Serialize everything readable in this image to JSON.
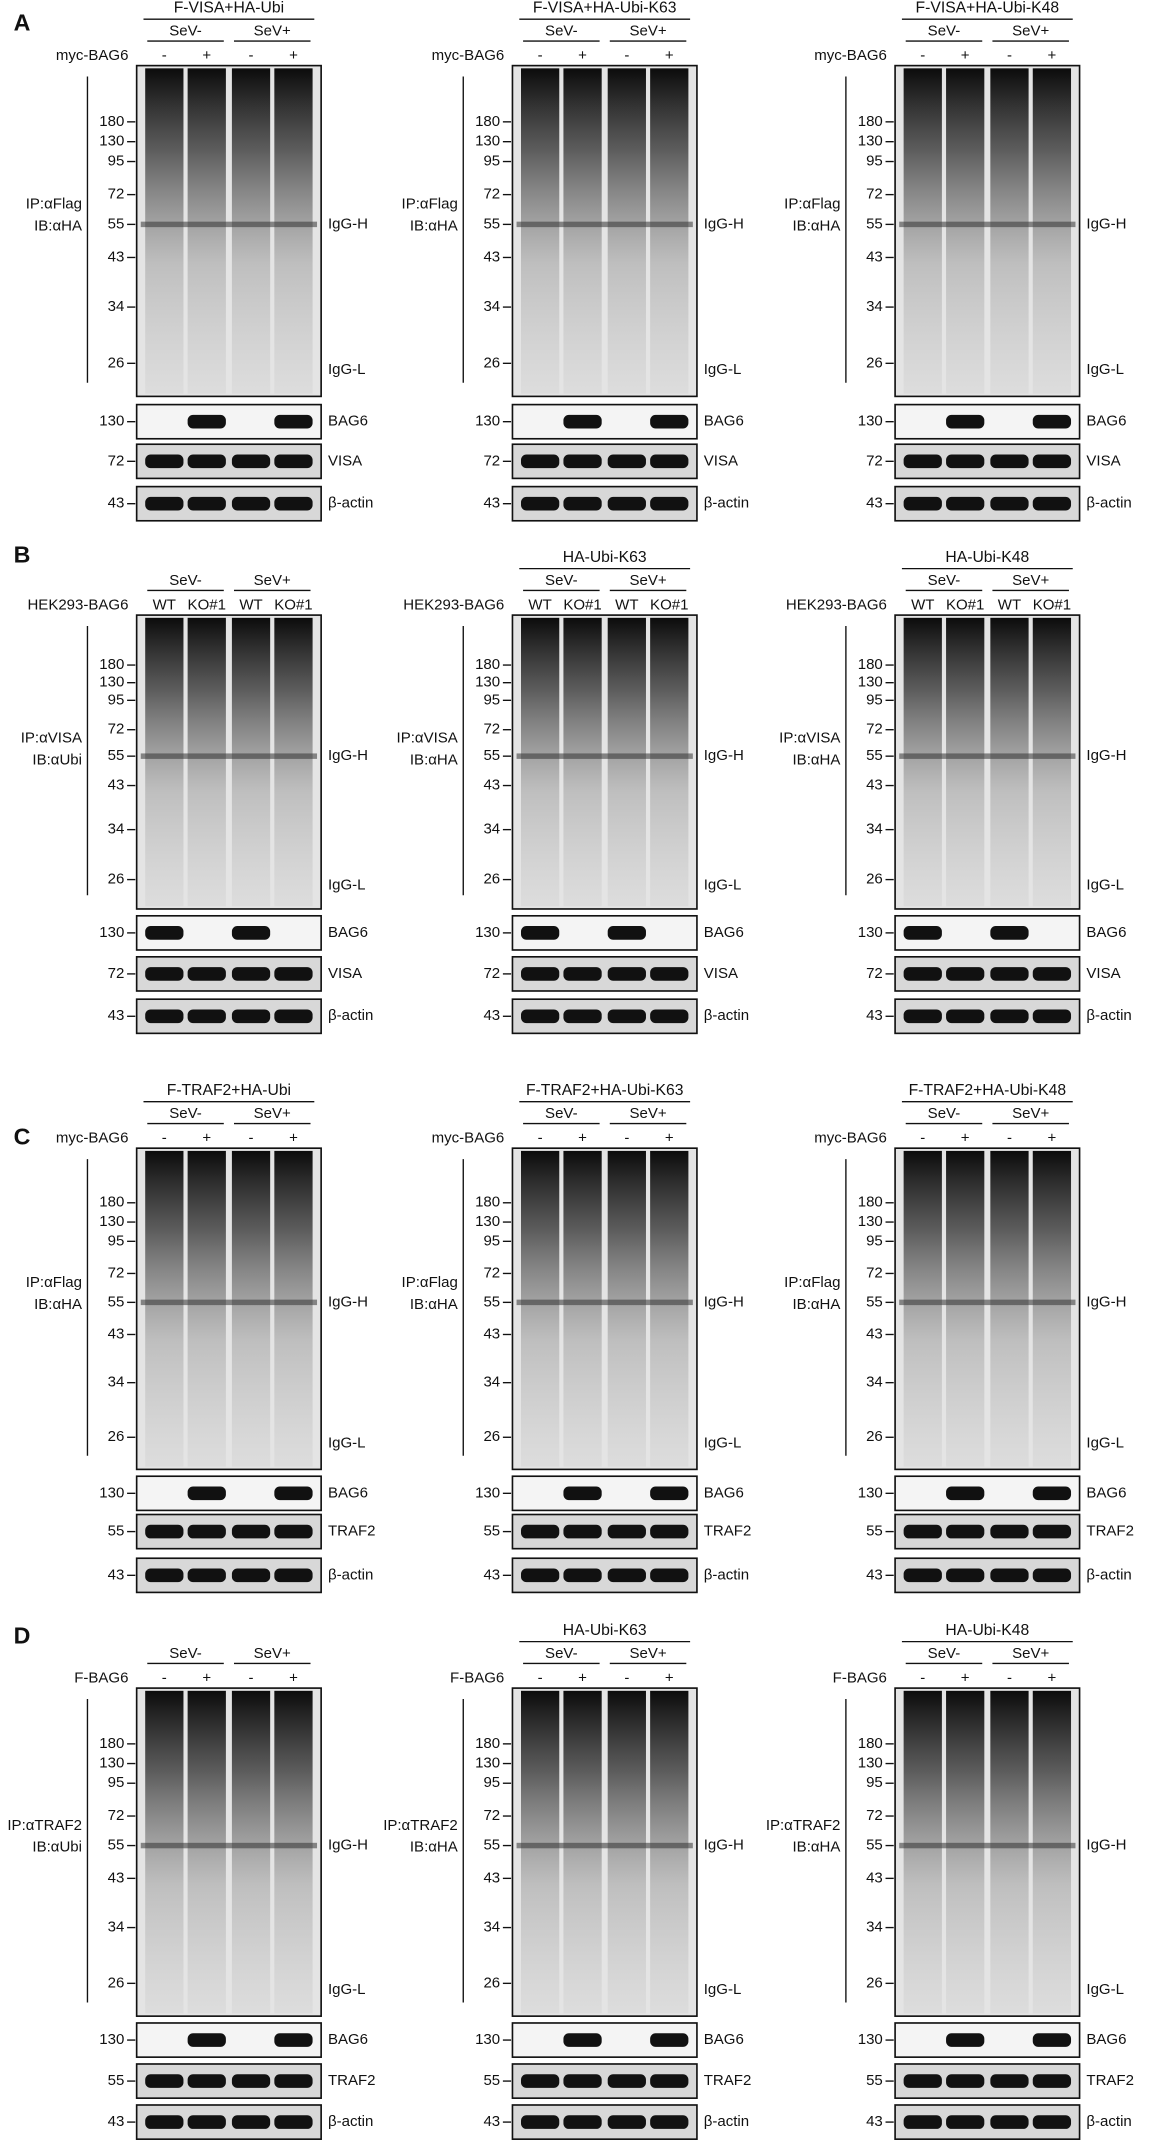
{
  "panels": [
    {
      "label": "A",
      "blots": [
        {
          "title": "F-VISA+HA-Ubi",
          "conditions": [
            "SeV-",
            "SeV+"
          ],
          "treatment": "myc-BAG6",
          "lanes": [
            "-",
            "+",
            "-",
            "+"
          ],
          "ip": [
            "IP:αFlag",
            "IB:αHA"
          ],
          "markers": [
            180,
            130,
            95,
            72,
            55,
            43,
            34,
            26
          ],
          "bands": [
            "IgG-H",
            "IgG-L"
          ],
          "strips": [
            {
              "marker": 130,
              "label": "BAG6"
            },
            {
              "marker": 72,
              "label": "VISA"
            },
            {
              "marker": 43,
              "label": "β-actin"
            }
          ]
        },
        {
          "title": "F-VISA+HA-Ubi-K63",
          "conditions": [
            "SeV-",
            "SeV+"
          ],
          "treatment": "myc-BAG6",
          "lanes": [
            "-",
            "+",
            "-",
            "+"
          ],
          "ip": [
            "IP:αFlag",
            "IB:αHA"
          ],
          "markers": [
            180,
            130,
            95,
            72,
            55,
            43,
            34,
            26
          ],
          "bands": [
            "IgG-H",
            "IgG-L"
          ],
          "strips": [
            {
              "marker": 130,
              "label": "BAG6"
            },
            {
              "marker": 72,
              "label": "VISA"
            },
            {
              "marker": 43,
              "label": "β-actin"
            }
          ]
        },
        {
          "title": "F-VISA+HA-Ubi-K48",
          "conditions": [
            "SeV-",
            "SeV+"
          ],
          "treatment": "myc-BAG6",
          "lanes": [
            "-",
            "+",
            "-",
            "+"
          ],
          "ip": [
            "IP:αFlag",
            "IB:αHA"
          ],
          "markers": [
            180,
            130,
            95,
            72,
            55,
            43,
            34,
            26
          ],
          "bands": [
            "IgG-H",
            "IgG-L"
          ],
          "strips": [
            {
              "marker": 130,
              "label": "BAG6"
            },
            {
              "marker": 72,
              "label": "VISA"
            },
            {
              "marker": 43,
              "label": "β-actin"
            }
          ]
        }
      ]
    },
    {
      "label": "B",
      "blots": [
        {
          "conditions": [
            "SeV-",
            "SeV+"
          ],
          "treatment": "HEK293-BAG6",
          "lanes": [
            "WT",
            "KO#1",
            "WT",
            "KO#1"
          ],
          "ip": [
            "IP:αVISA",
            "IB:αUbi"
          ],
          "markers": [
            180,
            130,
            95,
            72,
            55,
            43,
            34,
            26
          ],
          "bands": [
            "IgG-H",
            "IgG-L"
          ],
          "strips": [
            {
              "marker": 130,
              "label": "BAG6"
            },
            {
              "marker": 72,
              "label": "VISA"
            },
            {
              "marker": 43,
              "label": "β-actin"
            }
          ]
        },
        {
          "title": "HA-Ubi-K63",
          "conditions": [
            "SeV-",
            "SeV+"
          ],
          "treatment": "HEK293-BAG6",
          "lanes": [
            "WT",
            "KO#1",
            "WT",
            "KO#1"
          ],
          "ip": [
            "IP:αVISA",
            "IB:αHA"
          ],
          "markers": [
            180,
            130,
            95,
            72,
            55,
            43,
            34,
            26
          ],
          "bands": [
            "IgG-H",
            "IgG-L"
          ],
          "strips": [
            {
              "marker": 130,
              "label": "BAG6"
            },
            {
              "marker": 72,
              "label": "VISA"
            },
            {
              "marker": 43,
              "label": "β-actin"
            }
          ]
        },
        {
          "title": "HA-Ubi-K48",
          "conditions": [
            "SeV-",
            "SeV+"
          ],
          "treatment": "HEK293-BAG6",
          "lanes": [
            "WT",
            "KO#1",
            "WT",
            "KO#1"
          ],
          "ip": [
            "IP:αVISA",
            "IB:αHA"
          ],
          "markers": [
            180,
            130,
            95,
            72,
            55,
            43,
            34,
            26
          ],
          "bands": [
            "IgG-H",
            "IgG-L"
          ],
          "strips": [
            {
              "marker": 130,
              "label": "BAG6"
            },
            {
              "marker": 72,
              "label": "VISA"
            },
            {
              "marker": 43,
              "label": "β-actin"
            }
          ]
        }
      ]
    },
    {
      "label": "C",
      "blots": [
        {
          "title": "F-TRAF2+HA-Ubi",
          "conditions": [
            "SeV-",
            "SeV+"
          ],
          "treatment": "myc-BAG6",
          "lanes": [
            "-",
            "+",
            "-",
            "+"
          ],
          "ip": [
            "IP:αFlag",
            "IB:αHA"
          ],
          "markers": [
            180,
            130,
            95,
            72,
            55,
            43,
            34,
            26
          ],
          "bands": [
            "IgG-H",
            "IgG-L"
          ],
          "strips": [
            {
              "marker": 130,
              "label": "BAG6"
            },
            {
              "marker": 55,
              "label": "TRAF2"
            },
            {
              "marker": 43,
              "label": "β-actin"
            }
          ]
        },
        {
          "title": "F-TRAF2+HA-Ubi-K63",
          "conditions": [
            "SeV-",
            "SeV+"
          ],
          "treatment": "myc-BAG6",
          "lanes": [
            "-",
            "+",
            "-",
            "+"
          ],
          "ip": [
            "IP:αFlag",
            "IB:αHA"
          ],
          "markers": [
            180,
            130,
            95,
            72,
            55,
            43,
            34,
            26
          ],
          "bands": [
            "IgG-H",
            "IgG-L"
          ],
          "strips": [
            {
              "marker": 130,
              "label": "BAG6"
            },
            {
              "marker": 55,
              "label": "TRAF2"
            },
            {
              "marker": 43,
              "label": "β-actin"
            }
          ]
        },
        {
          "title": "F-TRAF2+HA-Ubi-K48",
          "conditions": [
            "SeV-",
            "SeV+"
          ],
          "treatment": "myc-BAG6",
          "lanes": [
            "-",
            "+",
            "-",
            "+"
          ],
          "ip": [
            "IP:αFlag",
            "IB:αHA"
          ],
          "markers": [
            180,
            130,
            95,
            72,
            55,
            43,
            34,
            26
          ],
          "bands": [
            "IgG-H",
            "IgG-L"
          ],
          "strips": [
            {
              "marker": 130,
              "label": "BAG6"
            },
            {
              "marker": 55,
              "label": "TRAF2"
            },
            {
              "marker": 43,
              "label": "β-actin"
            }
          ]
        }
      ]
    },
    {
      "label": "D",
      "blots": [
        {
          "conditions": [
            "SeV-",
            "SeV+"
          ],
          "treatment": "F-BAG6",
          "lanes": [
            "-",
            "+",
            "-",
            "+"
          ],
          "ip": [
            "IP:αTRAF2",
            "IB:αUbi"
          ],
          "markers": [
            180,
            130,
            95,
            72,
            55,
            43,
            34,
            26
          ],
          "bands": [
            "IgG-H",
            "IgG-L"
          ],
          "strips": [
            {
              "marker": 130,
              "label": "BAG6"
            },
            {
              "marker": 55,
              "label": "TRAF2"
            },
            {
              "marker": 43,
              "label": "β-actin"
            }
          ]
        },
        {
          "title": "HA-Ubi-K63",
          "conditions": [
            "SeV-",
            "SeV+"
          ],
          "treatment": "F-BAG6",
          "lanes": [
            "-",
            "+",
            "-",
            "+"
          ],
          "ip": [
            "IP:αTRAF2",
            "IB:αHA"
          ],
          "markers": [
            180,
            130,
            95,
            72,
            55,
            43,
            34,
            26
          ],
          "bands": [
            "IgG-H",
            "IgG-L"
          ],
          "strips": [
            {
              "marker": 130,
              "label": "BAG6"
            },
            {
              "marker": 55,
              "label": "TRAF2"
            },
            {
              "marker": 43,
              "label": "β-actin"
            }
          ]
        },
        {
          "title": "HA-Ubi-K48",
          "conditions": [
            "SeV-",
            "SeV+"
          ],
          "treatment": "F-BAG6",
          "lanes": [
            "-",
            "+",
            "-",
            "+"
          ],
          "ip": [
            "IP:αTRAF2",
            "IB:αHA"
          ],
          "markers": [
            180,
            130,
            95,
            72,
            55,
            43,
            34,
            26
          ],
          "bands": [
            "IgG-H",
            "IgG-L"
          ],
          "strips": [
            {
              "marker": 130,
              "label": "BAG6"
            },
            {
              "marker": 55,
              "label": "TRAF2"
            },
            {
              "marker": 43,
              "label": "β-actin"
            }
          ]
        }
      ]
    }
  ]
}
